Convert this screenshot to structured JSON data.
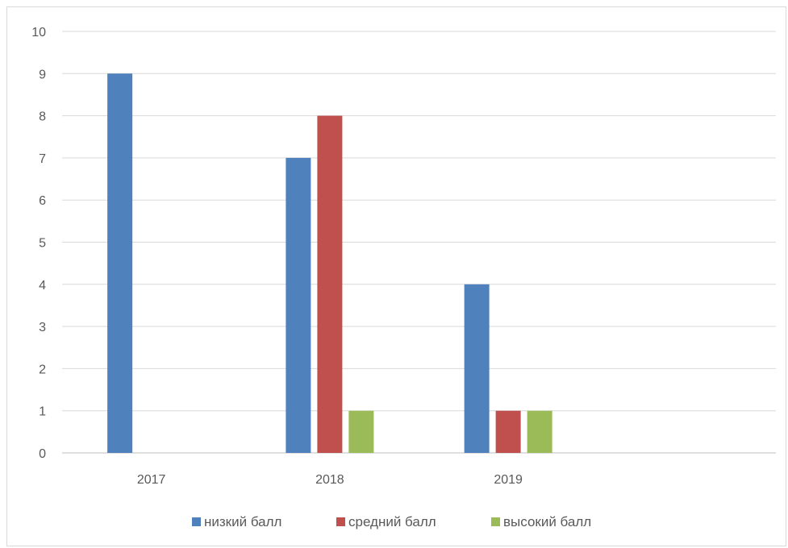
{
  "chart_data": {
    "type": "bar",
    "categories": [
      "2017",
      "2018",
      "2019",
      ""
    ],
    "series": [
      {
        "name": "низкий балл",
        "values": [
          9,
          7,
          4,
          null
        ],
        "color": "#4f81bd"
      },
      {
        "name": "средний балл",
        "values": [
          null,
          8,
          1,
          null
        ],
        "color": "#c0504d"
      },
      {
        "name": "высокий балл",
        "values": [
          null,
          1,
          1,
          null
        ],
        "color": "#9bbb59"
      }
    ],
    "ylim": [
      0,
      10
    ],
    "yticks": [
      "0",
      "1",
      "2",
      "3",
      "4",
      "5",
      "6",
      "7",
      "8",
      "9",
      "10"
    ],
    "grid": true,
    "legend": "bottom",
    "title": "",
    "xlabel": "",
    "ylabel": ""
  }
}
